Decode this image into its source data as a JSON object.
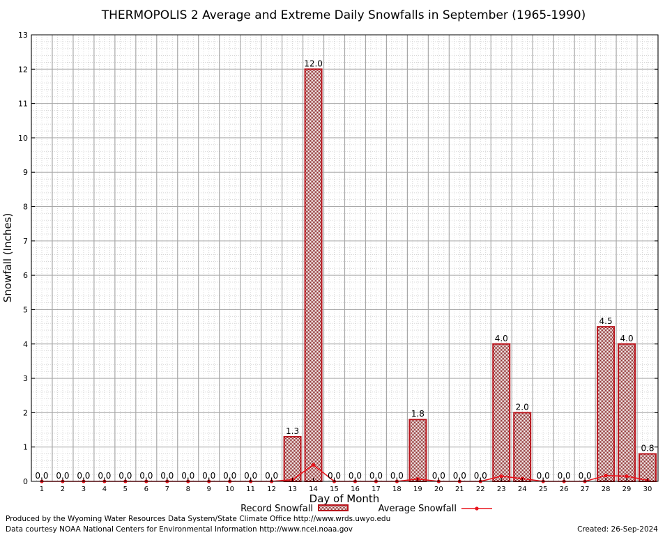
{
  "colors": {
    "bar_stroke": "#b8141c",
    "bar_fill": "#d8c0c0",
    "average_line": "#e8141c",
    "grid": "#a8a8a8",
    "grid_minor": "#cfcfcf"
  },
  "legend": {
    "record_label": "Record Snowfall",
    "average_label": "Average Snowfall"
  },
  "footer": {
    "line1": "Produced by the Wyoming Water Resources Data System/State Climate Office http://www.wrds.uwyo.edu",
    "line2": "Data courtesy NOAA National Centers for Environmental Information http://www.ncei.noaa.gov",
    "created": "Created:  26-Sep-2024"
  },
  "chart_data": {
    "type": "bar",
    "title": "THERMOPOLIS 2 Average and Extreme Daily Snowfalls in September (1965-1990)",
    "xlabel": "Day of Month",
    "ylabel": "Snowfall (Inches)",
    "ylim": [
      0,
      13
    ],
    "yticks": [
      0,
      1,
      2,
      3,
      4,
      5,
      6,
      7,
      8,
      9,
      10,
      11,
      12,
      13
    ],
    "grid": true,
    "legend_position": "bottom",
    "categories": [
      "1",
      "2",
      "3",
      "4",
      "5",
      "6",
      "7",
      "8",
      "9",
      "10",
      "11",
      "12",
      "13",
      "14",
      "15",
      "16",
      "17",
      "18",
      "19",
      "20",
      "21",
      "22",
      "23",
      "24",
      "25",
      "26",
      "27",
      "28",
      "29",
      "30"
    ],
    "series": [
      {
        "name": "Record Snowfall",
        "type": "bar",
        "values": [
          0,
          0,
          0,
          0,
          0,
          0,
          0,
          0,
          0,
          0,
          0,
          0,
          1.3,
          12.0,
          0,
          0,
          0,
          0,
          1.8,
          0,
          0,
          0,
          4.0,
          2.0,
          0,
          0,
          0,
          4.5,
          4.0,
          0.8
        ],
        "labels": [
          "0.0",
          "0.0",
          "0.0",
          "0.0",
          "0.0",
          "0.0",
          "0.0",
          "0.0",
          "0.0",
          "0.0",
          "0.0",
          "0.0",
          "1.3",
          "12.0",
          "0.0",
          "0.0",
          "0.0",
          "0.0",
          "1.8",
          "0.0",
          "0.0",
          "0.0",
          "4.0",
          "2.0",
          "0.0",
          "0.0",
          "0.0",
          "4.5",
          "4.0",
          "0.8"
        ]
      },
      {
        "name": "Average Snowfall",
        "type": "line",
        "values": [
          0,
          0,
          0,
          0,
          0,
          0,
          0,
          0,
          0,
          0,
          0,
          0,
          0.05,
          0.48,
          0,
          0,
          0,
          0,
          0.07,
          0,
          0,
          0,
          0.15,
          0.08,
          0,
          0,
          0,
          0.17,
          0.15,
          0.03
        ]
      }
    ]
  }
}
